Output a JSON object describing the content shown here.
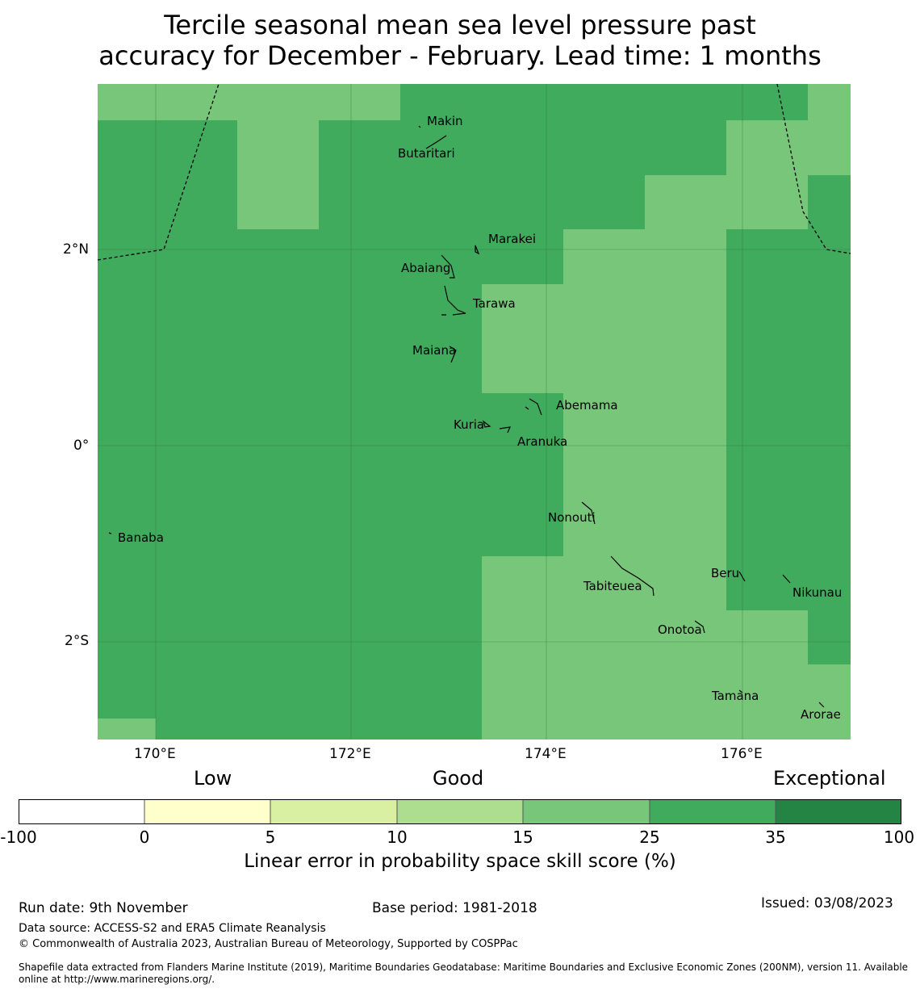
{
  "title_line1": "Tercile seasonal mean sea level pressure past",
  "title_line2": "accuracy for December - February. Lead time: 1 months",
  "colors": {
    "light_green": "#78c679",
    "mid_green": "#41ab5d",
    "dark_green": "#238443",
    "coastline": "#000000",
    "boundary": "#000000"
  },
  "map": {
    "lat_ticks": [
      "2°N",
      "0°",
      "2°S"
    ],
    "lon_ticks": [
      "170°E",
      "172°E",
      "174°E",
      "176°E"
    ],
    "places": [
      "Makin",
      "Butaritari",
      "Marakei",
      "Abaiang",
      "Tarawa",
      "Maiana",
      "Abemama",
      "Kuria",
      "Aranuka",
      "Nonouti",
      "Banaba",
      "Beru",
      "Nikunau",
      "Tabiteuea",
      "Onotoa",
      "Tamana",
      "Arorae"
    ]
  },
  "legend": {
    "categories": [
      "Low",
      "Good",
      "Exceptional"
    ],
    "ticks": [
      "-100",
      "0",
      "5",
      "10",
      "15",
      "25",
      "35",
      "100"
    ],
    "colors": [
      "#ffffff",
      "#ffffcc",
      "#d9f0a3",
      "#addd8e",
      "#78c679",
      "#41ab5d",
      "#238443"
    ],
    "label": "Linear error in probability space skill score (%)"
  },
  "footer": {
    "run_date": "Run date: 9th November",
    "base_period": "Base period: 1981-2018",
    "issued": "Issued: 03/08/2023",
    "data_source": "Data source: ACCESS-S2 and ERA5 Climate Reanalysis",
    "copyright": "© Commonwealth of Australia 2023, Australian Bureau of Meteorology, Supported by COSPPac",
    "shapefile_line1": "Shapefile data extracted from Flanders Marine Institute (2019), Maritime Boundaries Geodatabase: Maritime Boundaries and Exclusive Economic Zones (200NM), version 11. Available",
    "shapefile_line2": "online at http://www.marineregions.org/."
  }
}
